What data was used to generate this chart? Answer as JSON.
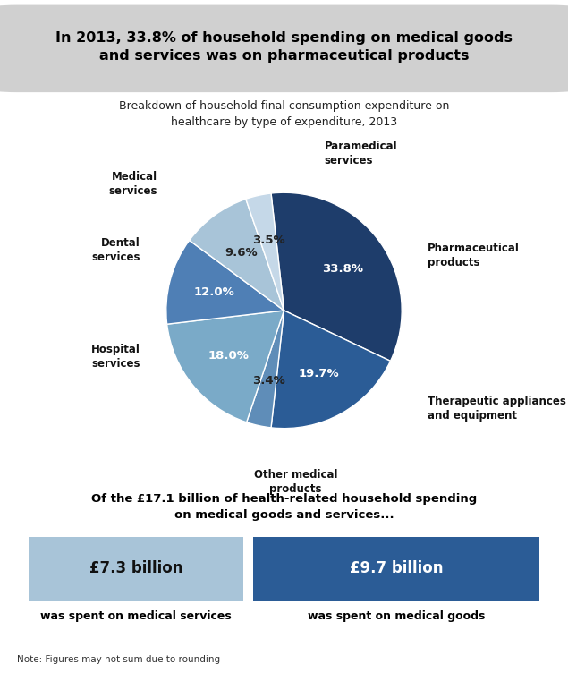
{
  "title_box_text": "In 2013, 33.8% of household spending on medical goods\nand services was on pharmaceutical products",
  "subtitle_text": "Breakdown of household final consumption expenditure on\nhealthcare by type of expenditure, 2013",
  "slices": [
    {
      "label": "Pharmaceutical\nproducts",
      "pct": 33.8,
      "color": "#1e3d6b"
    },
    {
      "label": "Therapeutic appliances\nand equipment",
      "pct": 19.7,
      "color": "#2b5c96"
    },
    {
      "label": "Other medical\nproducts",
      "pct": 3.4,
      "color": "#5f8db8"
    },
    {
      "label": "Hospital\nservices",
      "pct": 18.0,
      "color": "#7aaac8"
    },
    {
      "label": "Dental\nservices",
      "pct": 12.0,
      "color": "#4f7fb5"
    },
    {
      "label": "Medical\nservices",
      "pct": 9.6,
      "color": "#a8c4d8"
    },
    {
      "label": "Paramedical\nservices",
      "pct": 3.5,
      "color": "#c5d8e8"
    }
  ],
  "bottom_heading": "Of the £17.1 billion of health-related household spending\non medical goods and services...",
  "left_box_amount": "£7.3 billion",
  "left_box_label": "was spent on medical services",
  "left_box_color": "#a8c4d8",
  "right_box_amount": "£9.7 billion",
  "right_box_label": "was spent on medical goods",
  "right_box_color": "#2b5c96",
  "note": "Note: Figures may not sum due to rounding",
  "bg_color": "#ffffff",
  "title_box_color": "#d0d0d0",
  "pct_colors": {
    "Pharmaceutical\nproducts": "white",
    "Therapeutic appliances\nand equipment": "white",
    "Other medical\nproducts": "#222222",
    "Hospital\nservices": "white",
    "Dental\nservices": "white",
    "Medical\nservices": "#222222",
    "Paramedical\nservices": "#222222"
  }
}
